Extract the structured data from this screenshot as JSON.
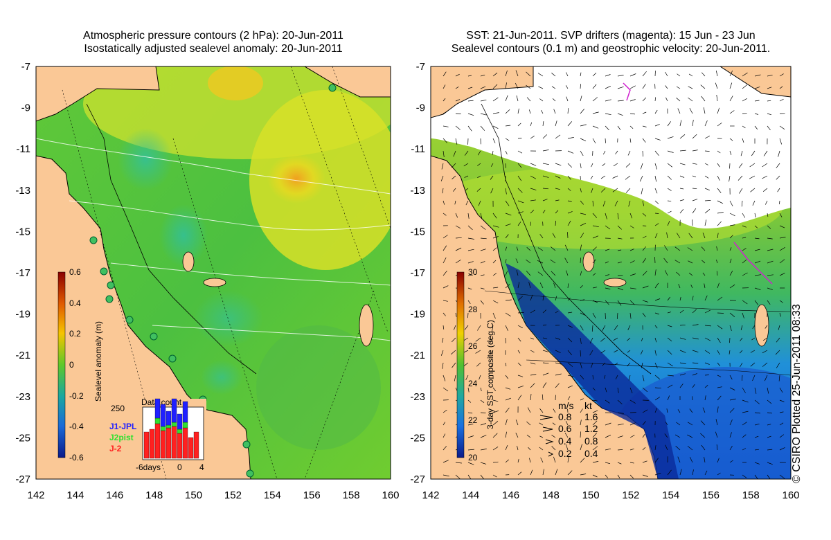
{
  "left_panel": {
    "title_line1": "Atmospheric pressure contours (2 hPa): 20-Jun-2011",
    "title_line2": "Isostatically adjusted sealevel anomaly: 20-Jun-2011",
    "colorbar": {
      "label": "Sealevel anomaly (m)",
      "ticks": [
        "0.6",
        "0.4",
        "0.2",
        "0",
        "-0.2",
        "-0.4",
        "-0.6"
      ],
      "colors": [
        "#8b0000",
        "#e05a00",
        "#f6c400",
        "#5ec82a",
        "#1aa7a0",
        "#1a6ad8",
        "#0a1a8a"
      ]
    },
    "inset": {
      "title": "Data count",
      "ymax_label": "250",
      "legend": [
        {
          "name": "J1-JPL",
          "color": "#2020ff"
        },
        {
          "name": "J2pist",
          "color": "#30e030"
        },
        {
          "name": "J-2",
          "color": "#ff2020"
        }
      ],
      "x_labels": [
        "-6days",
        "0",
        "4"
      ]
    }
  },
  "right_panel": {
    "title_line1": "SST: 21-Jun-2011. SVP drifters (magenta): 15 Jun - 23 Jun",
    "title_line2": "Sealevel contours (0.1 m) and geostrophic velocity: 20-Jun-2011.",
    "colorbar": {
      "label": "3-day SST composite (deg C)",
      "ticks": [
        "30",
        "28",
        "26",
        "24",
        "22",
        "20"
      ],
      "colors": [
        "#8b0000",
        "#e07000",
        "#f0d000",
        "#50c030",
        "#20a8a0",
        "#1a70e0",
        "#0a1a8a"
      ]
    },
    "velocity_legend": {
      "header_ms": "m/s",
      "header_kt": "kt",
      "rows": [
        {
          "ms": "0.8",
          "kt": "1.6"
        },
        {
          "ms": "0.6",
          "kt": "1.2"
        },
        {
          "ms": "0.4",
          "kt": "0.8"
        },
        {
          "ms": "0.2",
          "kt": "0.4"
        }
      ]
    }
  },
  "axes": {
    "y_labels": [
      "-7",
      "-9",
      "-11",
      "-13",
      "-15",
      "-17",
      "-19",
      "-21",
      "-23",
      "-25",
      "-27"
    ],
    "x_labels": [
      "142",
      "144",
      "146",
      "148",
      "150",
      "152",
      "154",
      "156",
      "158",
      "160"
    ]
  },
  "credit": "© CSIRO Plotted 25-Jun-2011 08:33",
  "colors": {
    "land": "#fac896",
    "cloud": "#ffffff",
    "coast": "#000000",
    "contour": "#ffffff"
  }
}
